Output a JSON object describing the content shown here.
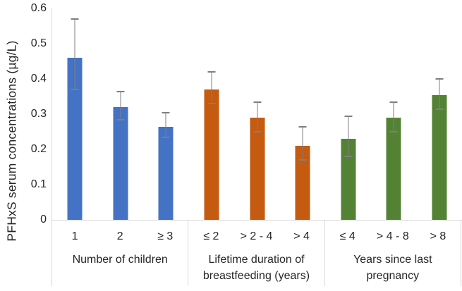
{
  "chart_data": {
    "type": "bar",
    "title": "",
    "xlabel": "",
    "ylabel": "PFHxS serum concentrations (µg/L)",
    "ylim": [
      0,
      0.6
    ],
    "yticks": [
      0,
      0.1,
      0.2,
      0.3,
      0.4,
      0.5,
      0.6
    ],
    "grid": false,
    "legend": "none",
    "error_bars": true,
    "groups": [
      {
        "label": "Number of children",
        "color": "#4472C4",
        "bars": [
          {
            "category": "1",
            "value": 0.46,
            "err_low": 0.37,
            "err_high": 0.57
          },
          {
            "category": "2",
            "value": 0.32,
            "err_low": 0.285,
            "err_high": 0.365
          },
          {
            "category": "≥ 3",
            "value": 0.265,
            "err_low": 0.235,
            "err_high": 0.305
          }
        ]
      },
      {
        "label": "Lifetime duration of breastfeeding (years)",
        "color": "#C55A11",
        "bars": [
          {
            "category": "≤ 2",
            "value": 0.37,
            "err_low": 0.33,
            "err_high": 0.42
          },
          {
            "category": "> 2 - 4",
            "value": 0.29,
            "err_low": 0.25,
            "err_high": 0.335
          },
          {
            "category": "> 4",
            "value": 0.21,
            "err_low": 0.17,
            "err_high": 0.265
          }
        ]
      },
      {
        "label": "Years since last pregnancy",
        "color": "#548235",
        "bars": [
          {
            "category": "≤ 4",
            "value": 0.23,
            "err_low": 0.18,
            "err_high": 0.295
          },
          {
            "category": "> 4 - 8",
            "value": 0.29,
            "err_low": 0.25,
            "err_high": 0.335
          },
          {
            "category": "> 8",
            "value": 0.355,
            "err_low": 0.315,
            "err_high": 0.4
          }
        ]
      }
    ],
    "colors": {
      "axis_line": "#D9D9D9",
      "group_divider": "#D9D9D9",
      "error_bar": "#7F7F7F",
      "text": "#262626",
      "background": "#FFFFFF"
    }
  }
}
